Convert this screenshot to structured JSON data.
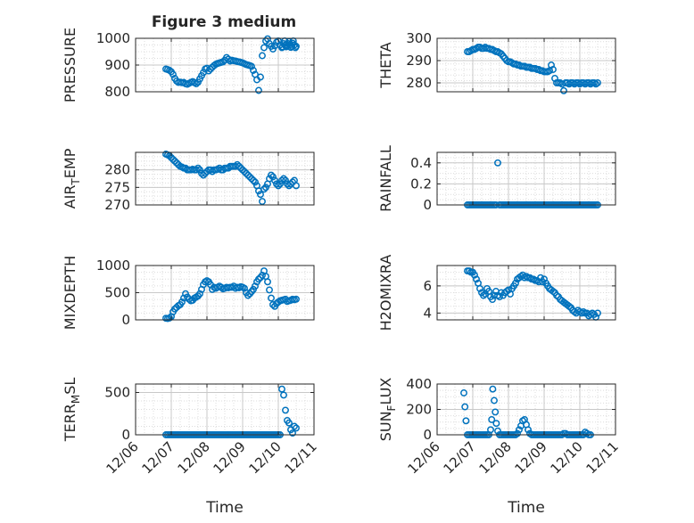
{
  "figure_title": "Figure 3 medium",
  "x_axis": {
    "label": "Time",
    "ticks": [
      "12/06",
      "12/07",
      "12/08",
      "12/09",
      "12/10",
      "12/11"
    ]
  },
  "colors": {
    "marker": "#0072BD",
    "axis": "#262626",
    "grid": "#c8c8c8",
    "minor_grid": "#dcdcdc"
  },
  "chart_data": [
    {
      "type": "scatter",
      "title": "Figure 3 medium",
      "ylabel": "PRESSURE",
      "ylabel_sub": "",
      "ylim": [
        800,
        1000
      ],
      "yticks": [
        800,
        900,
        1000
      ],
      "yminor": 25,
      "x": [
        0.85,
        0.9,
        0.95,
        1.0,
        1.05,
        1.1,
        1.15,
        1.2,
        1.25,
        1.3,
        1.35,
        1.4,
        1.45,
        1.5,
        1.55,
        1.6,
        1.65,
        1.7,
        1.75,
        1.8,
        1.85,
        1.9,
        1.95,
        2.0,
        2.05,
        2.1,
        2.15,
        2.2,
        2.25,
        2.3,
        2.35,
        2.4,
        2.45,
        2.5,
        2.55,
        2.6,
        2.65,
        2.7,
        2.75,
        2.8,
        2.85,
        2.9,
        2.95,
        3.0,
        3.05,
        3.1,
        3.15,
        3.2,
        3.25,
        3.3,
        3.35,
        3.4,
        3.45,
        3.5,
        3.55,
        3.6,
        3.65,
        3.7,
        3.75,
        3.8,
        3.85,
        3.9,
        3.95,
        4.0,
        4.05,
        4.1,
        4.12,
        4.15,
        4.18,
        4.2,
        4.22,
        4.25,
        4.28,
        4.3,
        4.33,
        4.35,
        4.38,
        4.4,
        4.42,
        4.45,
        4.48,
        4.5
      ],
      "y": [
        885,
        883,
        880,
        875,
        865,
        850,
        840,
        835,
        836,
        834,
        835,
        830,
        828,
        832,
        835,
        838,
        834,
        830,
        836,
        848,
        860,
        872,
        885,
        888,
        878,
        885,
        892,
        898,
        903,
        906,
        908,
        910,
        912,
        918,
        928,
        922,
        915,
        918,
        916,
        915,
        913,
        912,
        910,
        908,
        905,
        902,
        900,
        898,
        895,
        880,
        865,
        845,
        805,
        855,
        935,
        965,
        990,
        998,
        980,
        970,
        960,
        972,
        985,
        990,
        975,
        965,
        968,
        980,
        990,
        975,
        968,
        972,
        980,
        988,
        976,
        966,
        970,
        982,
        990,
        975,
        965,
        970
      ]
    },
    {
      "type": "scatter",
      "title": "",
      "ylabel": "THETA",
      "ylabel_sub": "",
      "ylim": [
        276,
        300
      ],
      "yticks": [
        280,
        290,
        300
      ],
      "yminor": 2.5,
      "x": [
        0.85,
        0.9,
        0.95,
        1.0,
        1.05,
        1.1,
        1.15,
        1.2,
        1.25,
        1.3,
        1.35,
        1.4,
        1.45,
        1.5,
        1.55,
        1.6,
        1.65,
        1.7,
        1.75,
        1.8,
        1.85,
        1.9,
        1.95,
        2.0,
        2.05,
        2.1,
        2.15,
        2.2,
        2.25,
        2.3,
        2.35,
        2.4,
        2.45,
        2.5,
        2.55,
        2.6,
        2.65,
        2.7,
        2.75,
        2.8,
        2.85,
        2.9,
        2.95,
        3.0,
        3.05,
        3.1,
        3.15,
        3.2,
        3.25,
        3.3,
        3.35,
        3.4,
        3.45,
        3.5,
        3.55,
        3.6,
        3.65,
        3.7,
        3.75,
        3.8,
        3.85,
        3.9,
        3.95,
        4.0,
        4.05,
        4.1,
        4.15,
        4.2,
        4.25,
        4.3,
        4.35,
        4.4,
        4.45,
        4.5
      ],
      "y": [
        294,
        294,
        294.5,
        295,
        295,
        295.5,
        296,
        296,
        295.5,
        295.5,
        296,
        295.5,
        295.5,
        295,
        295,
        294.5,
        294,
        294,
        293.5,
        293,
        292,
        291,
        290,
        289.5,
        289.5,
        289,
        288.5,
        288.5,
        288,
        288,
        287.5,
        287.5,
        287.5,
        287,
        287,
        287,
        286.5,
        286.5,
        286.5,
        286,
        286,
        285.5,
        285.5,
        285,
        285,
        285,
        285.5,
        288,
        286,
        282,
        280,
        280,
        280,
        279.5,
        276.5,
        280,
        280,
        279.5,
        280,
        280,
        279.5,
        280,
        280,
        279.5,
        280,
        280,
        279.5,
        280,
        280,
        279.5,
        280,
        280,
        279.5,
        280
      ]
    },
    {
      "type": "scatter",
      "title": "",
      "ylabel": "AIR",
      "ylabel_sub": "T",
      "ylabel_suffix": "EMP",
      "ylim": [
        270,
        285
      ],
      "yticks": [
        270,
        275,
        280
      ],
      "yminor": 1.25,
      "x": [
        0.85,
        0.9,
        0.95,
        1.0,
        1.05,
        1.1,
        1.15,
        1.2,
        1.25,
        1.3,
        1.35,
        1.4,
        1.45,
        1.5,
        1.55,
        1.6,
        1.65,
        1.7,
        1.75,
        1.8,
        1.85,
        1.9,
        1.95,
        2.0,
        2.05,
        2.1,
        2.15,
        2.2,
        2.25,
        2.3,
        2.35,
        2.4,
        2.45,
        2.5,
        2.55,
        2.6,
        2.65,
        2.7,
        2.75,
        2.8,
        2.85,
        2.9,
        2.95,
        3.0,
        3.05,
        3.1,
        3.15,
        3.2,
        3.25,
        3.3,
        3.35,
        3.4,
        3.45,
        3.5,
        3.55,
        3.6,
        3.65,
        3.7,
        3.75,
        3.8,
        3.85,
        3.9,
        3.95,
        4.0,
        4.05,
        4.1,
        4.15,
        4.2,
        4.25,
        4.3,
        4.35,
        4.4,
        4.45,
        4.5
      ],
      "y": [
        284.5,
        284.3,
        284,
        283.5,
        283,
        282.5,
        282,
        281.5,
        281,
        280.8,
        280.5,
        280.5,
        280,
        280,
        280,
        280.2,
        280,
        280,
        280.5,
        280,
        279,
        278.5,
        279,
        279.5,
        280,
        280,
        279.5,
        280,
        280,
        280.2,
        280.5,
        280,
        280,
        280.5,
        280.5,
        280.5,
        281,
        281,
        281,
        281,
        281.5,
        281,
        280.5,
        280,
        279.5,
        279,
        278.5,
        278,
        277.5,
        277,
        276.5,
        275.5,
        274,
        273,
        271,
        274.5,
        275,
        276,
        277.5,
        278.5,
        278,
        277,
        276,
        275.5,
        276,
        277,
        277.5,
        277,
        276,
        275.5,
        276,
        276.5,
        277,
        275.5
      ]
    },
    {
      "type": "scatter",
      "title": "",
      "ylabel": "RAINFALL",
      "ylabel_sub": "",
      "ylim": [
        0,
        0.5
      ],
      "yticks": [
        0,
        0.2,
        0.4
      ],
      "yminor": 0.05,
      "x": [
        0.85,
        0.9,
        0.95,
        1.0,
        1.05,
        1.1,
        1.15,
        1.2,
        1.25,
        1.3,
        1.35,
        1.4,
        1.45,
        1.5,
        1.55,
        1.6,
        1.65,
        1.7,
        1.75,
        1.8,
        1.85,
        1.9,
        1.95,
        2.0,
        2.05,
        2.1,
        2.15,
        2.2,
        2.25,
        2.3,
        2.35,
        2.4,
        2.45,
        2.5,
        2.55,
        2.6,
        2.65,
        2.7,
        2.75,
        2.8,
        2.85,
        2.9,
        2.95,
        3.0,
        3.05,
        3.1,
        3.15,
        3.2,
        3.25,
        3.3,
        3.35,
        3.4,
        3.45,
        3.5,
        3.55,
        3.6,
        3.65,
        3.7,
        3.75,
        3.8,
        3.85,
        3.9,
        3.95,
        4.0,
        4.05,
        4.1,
        4.15,
        4.2,
        4.25,
        4.3,
        4.35,
        4.4,
        4.45,
        4.5
      ],
      "y": [
        0,
        0,
        0,
        0,
        0,
        0,
        0,
        0,
        0,
        0,
        0,
        0,
        0,
        0,
        0,
        0,
        0,
        0.4,
        0,
        0,
        0,
        0,
        0,
        0,
        0,
        0,
        0,
        0,
        0,
        0,
        0,
        0,
        0,
        0,
        0,
        0,
        0,
        0,
        0,
        0,
        0,
        0,
        0,
        0,
        0,
        0,
        0,
        0,
        0,
        0,
        0,
        0,
        0,
        0,
        0,
        0,
        0,
        0,
        0,
        0,
        0,
        0,
        0,
        0,
        0,
        0,
        0,
        0,
        0,
        0,
        0,
        0,
        0,
        0
      ]
    },
    {
      "type": "scatter",
      "title": "",
      "ylabel": "MIXDEPTH",
      "ylabel_sub": "",
      "ylim": [
        0,
        1000
      ],
      "yticks": [
        0,
        500,
        1000
      ],
      "yminor": 125,
      "x": [
        0.85,
        0.9,
        0.95,
        1.0,
        1.05,
        1.1,
        1.15,
        1.2,
        1.25,
        1.3,
        1.35,
        1.4,
        1.45,
        1.5,
        1.55,
        1.6,
        1.65,
        1.7,
        1.75,
        1.8,
        1.85,
        1.9,
        1.95,
        2.0,
        2.05,
        2.1,
        2.15,
        2.2,
        2.25,
        2.3,
        2.35,
        2.4,
        2.45,
        2.5,
        2.55,
        2.6,
        2.65,
        2.7,
        2.75,
        2.8,
        2.85,
        2.9,
        2.95,
        3.0,
        3.05,
        3.1,
        3.15,
        3.2,
        3.25,
        3.3,
        3.35,
        3.4,
        3.45,
        3.5,
        3.55,
        3.6,
        3.65,
        3.7,
        3.75,
        3.8,
        3.85,
        3.9,
        3.95,
        4.0,
        4.05,
        4.1,
        4.15,
        4.2,
        4.25,
        4.3,
        4.35,
        4.4,
        4.45,
        4.5
      ],
      "y": [
        30,
        25,
        35,
        60,
        150,
        200,
        230,
        260,
        280,
        330,
        400,
        480,
        420,
        380,
        350,
        360,
        400,
        420,
        440,
        480,
        560,
        650,
        700,
        720,
        700,
        650,
        560,
        600,
        580,
        600,
        620,
        600,
        570,
        580,
        600,
        590,
        600,
        600,
        620,
        580,
        600,
        590,
        610,
        600,
        580,
        500,
        450,
        480,
        520,
        560,
        620,
        700,
        750,
        780,
        820,
        900,
        800,
        700,
        550,
        400,
        280,
        250,
        300,
        330,
        350,
        360,
        370,
        380,
        340,
        350,
        360,
        380,
        370,
        380
      ]
    },
    {
      "type": "scatter",
      "title": "",
      "ylabel": "H2OMIXRA",
      "ylabel_sub": "",
      "ylim": [
        3.5,
        7.5
      ],
      "yticks": [
        4,
        6
      ],
      "yminor": 0.5,
      "x": [
        0.85,
        0.9,
        0.95,
        1.0,
        1.05,
        1.1,
        1.15,
        1.2,
        1.25,
        1.3,
        1.35,
        1.4,
        1.45,
        1.5,
        1.55,
        1.6,
        1.65,
        1.7,
        1.75,
        1.8,
        1.85,
        1.9,
        1.95,
        2.0,
        2.05,
        2.1,
        2.15,
        2.2,
        2.25,
        2.3,
        2.35,
        2.4,
        2.45,
        2.5,
        2.55,
        2.6,
        2.65,
        2.7,
        2.75,
        2.8,
        2.85,
        2.9,
        2.95,
        3.0,
        3.05,
        3.1,
        3.15,
        3.2,
        3.25,
        3.3,
        3.35,
        3.4,
        3.45,
        3.5,
        3.55,
        3.6,
        3.65,
        3.7,
        3.75,
        3.8,
        3.85,
        3.9,
        3.95,
        4.0,
        4.05,
        4.1,
        4.15,
        4.2,
        4.25,
        4.3,
        4.35,
        4.4,
        4.45,
        4.5
      ],
      "y": [
        7.1,
        7.1,
        7.0,
        7.0,
        6.8,
        6.5,
        6.2,
        5.8,
        5.5,
        5.3,
        5.4,
        5.8,
        5.6,
        5.2,
        5.0,
        5.3,
        5.6,
        5.3,
        5.2,
        5.5,
        5.3,
        5.5,
        5.6,
        5.7,
        5.4,
        5.8,
        6.0,
        6.2,
        6.5,
        6.6,
        6.7,
        6.8,
        6.6,
        6.7,
        6.6,
        6.6,
        6.5,
        6.5,
        6.4,
        6.4,
        6.3,
        6.6,
        6.3,
        6.5,
        6.2,
        6.0,
        5.8,
        5.7,
        5.6,
        5.5,
        5.3,
        5.2,
        5.0,
        4.9,
        4.8,
        4.7,
        4.6,
        4.5,
        4.4,
        4.2,
        4.1,
        4.0,
        4.2,
        4.1,
        4.0,
        4.1,
        4.0,
        4.0,
        3.8,
        3.9,
        4.0,
        3.9,
        3.7,
        4.0
      ]
    },
    {
      "type": "scatter",
      "title": "",
      "ylabel": "TERR",
      "ylabel_sub": "M",
      "ylabel_suffix": "SL",
      "ylim": [
        0,
        600
      ],
      "yticks": [
        0,
        500
      ],
      "yminor": 100,
      "x": [
        0.85,
        0.9,
        0.95,
        1.0,
        1.05,
        1.1,
        1.15,
        1.2,
        1.25,
        1.3,
        1.35,
        1.4,
        1.45,
        1.5,
        1.55,
        1.6,
        1.65,
        1.7,
        1.75,
        1.8,
        1.85,
        1.9,
        1.95,
        2.0,
        2.05,
        2.1,
        2.15,
        2.2,
        2.25,
        2.3,
        2.35,
        2.4,
        2.45,
        2.5,
        2.55,
        2.6,
        2.65,
        2.7,
        2.75,
        2.8,
        2.85,
        2.9,
        2.95,
        3.0,
        3.05,
        3.1,
        3.15,
        3.2,
        3.25,
        3.3,
        3.35,
        3.4,
        3.45,
        3.5,
        3.55,
        3.6,
        3.65,
        3.7,
        3.75,
        3.8,
        3.85,
        3.9,
        3.95,
        4.0,
        4.05,
        4.1,
        4.15,
        4.2,
        4.25,
        4.3,
        4.35,
        4.4,
        4.45,
        4.5
      ],
      "y": [
        0,
        0,
        0,
        0,
        0,
        0,
        0,
        0,
        0,
        0,
        0,
        0,
        0,
        0,
        0,
        0,
        0,
        0,
        0,
        0,
        0,
        0,
        0,
        0,
        0,
        0,
        0,
        0,
        0,
        0,
        0,
        0,
        0,
        0,
        0,
        0,
        0,
        0,
        0,
        0,
        0,
        0,
        0,
        0,
        0,
        0,
        0,
        0,
        0,
        0,
        0,
        0,
        0,
        0,
        0,
        0,
        0,
        0,
        0,
        0,
        0,
        0,
        0,
        0,
        0,
        540,
        470,
        290,
        170,
        140,
        60,
        20,
        100,
        80
      ]
    },
    {
      "type": "scatter",
      "title": "",
      "ylabel": "SUN",
      "ylabel_sub": "F",
      "ylabel_suffix": "LUX",
      "ylim": [
        0,
        400
      ],
      "yticks": [
        0,
        200,
        400
      ],
      "yminor": 50,
      "x": [
        0.75,
        0.78,
        0.81,
        0.85,
        0.9,
        0.95,
        1.0,
        1.05,
        1.1,
        1.15,
        1.2,
        1.25,
        1.3,
        1.35,
        1.4,
        1.45,
        1.5,
        1.53,
        1.56,
        1.6,
        1.63,
        1.66,
        1.7,
        1.75,
        1.8,
        1.85,
        1.9,
        1.95,
        2.0,
        2.05,
        2.1,
        2.15,
        2.2,
        2.25,
        2.3,
        2.35,
        2.4,
        2.45,
        2.5,
        2.55,
        2.6,
        2.65,
        2.7,
        2.75,
        2.8,
        2.85,
        2.9,
        2.95,
        3.0,
        3.05,
        3.1,
        3.15,
        3.2,
        3.25,
        3.3,
        3.35,
        3.4,
        3.45,
        3.5,
        3.55,
        3.6,
        3.65,
        3.7,
        3.75,
        3.8,
        3.85,
        3.9,
        3.95,
        4.0,
        4.05,
        4.1,
        4.15,
        4.2,
        4.25,
        4.3
      ],
      "y": [
        330,
        220,
        110,
        0,
        0,
        0,
        0,
        0,
        0,
        0,
        0,
        0,
        0,
        0,
        0,
        0,
        40,
        120,
        360,
        270,
        180,
        90,
        30,
        0,
        0,
        0,
        0,
        0,
        0,
        0,
        0,
        0,
        0,
        10,
        40,
        70,
        110,
        120,
        80,
        40,
        10,
        0,
        0,
        0,
        0,
        0,
        0,
        0,
        0,
        0,
        0,
        0,
        0,
        0,
        0,
        0,
        0,
        0,
        0,
        10,
        10,
        0,
        0,
        0,
        0,
        0,
        0,
        0,
        0,
        0,
        0,
        20,
        10,
        0,
        0
      ]
    }
  ]
}
